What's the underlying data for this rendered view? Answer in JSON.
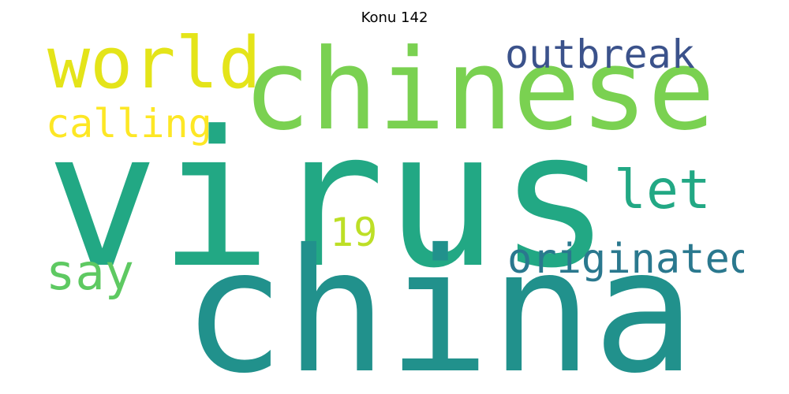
{
  "title": "Konu 142",
  "words": {
    "virus": {
      "text": "virus",
      "color": "#22a884"
    },
    "china": {
      "text": "china",
      "color": "#21918c"
    },
    "chinese": {
      "text": "chinese",
      "color": "#7ad151"
    },
    "world": {
      "text": "world",
      "color": "#e4e419"
    },
    "outbreak": {
      "text": "outbreak",
      "color": "#3b528b"
    },
    "calling": {
      "text": "calling",
      "color": "#fde725"
    },
    "let": {
      "text": "let",
      "color": "#22a884"
    },
    "nineteen": {
      "text": "19",
      "color": "#bddf26"
    },
    "originated": {
      "text": "originated",
      "color": "#2a788e"
    },
    "say": {
      "text": "say",
      "color": "#5ec962"
    }
  }
}
